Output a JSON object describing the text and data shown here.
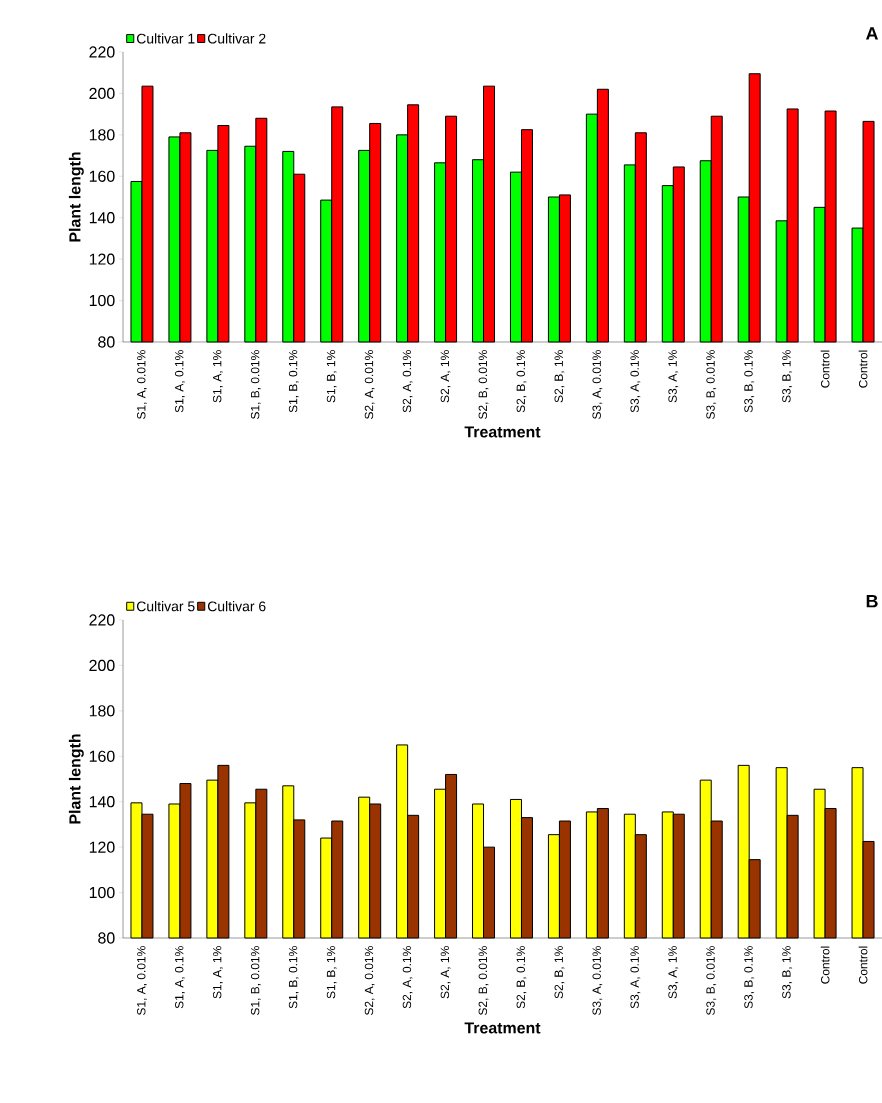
{
  "chart_data": [
    {
      "type": "bar",
      "title": "A",
      "xlabel": "Treatment",
      "ylabel": "Plant length",
      "categories": [
        "S1, A, 0.01%",
        "S1, A, 0.1%",
        "S1, A, 1%",
        "S1, B, 0.01%",
        "S1, B, 0.1%",
        "S1, B, 1%",
        "S2, A, 0.01%",
        "S2, A, 0.1%",
        "S2, A, 1%",
        "S2, B, 0.01%",
        "S2, B, 0.1%",
        "S2, B, 1%",
        "S3, A, 0.01%",
        "S3, A, 0.1%",
        "S3, A, 1%",
        "S3, B, 0.01%",
        "S3, B, 0.1%",
        "S3, B, 1%",
        "Control",
        "Control"
      ],
      "series": [
        {
          "name": "Cultivar 1",
          "color": "#00ff00",
          "values": [
            157.5,
            179,
            172.5,
            174.5,
            172,
            148.5,
            172.5,
            180,
            166.5,
            168,
            162,
            150,
            190,
            165.5,
            155.5,
            167.5,
            150,
            138.5,
            145,
            135
          ]
        },
        {
          "name": "Cultivar 2",
          "color": "#ff0000",
          "values": [
            203.5,
            181,
            184.5,
            188,
            161,
            193.5,
            185.5,
            194.5,
            189,
            203.5,
            182.5,
            151,
            202,
            181,
            164.5,
            189,
            209.5,
            192.5,
            191.5,
            186.5
          ]
        }
      ],
      "ylim": [
        80,
        220
      ],
      "yticks": [
        80,
        100,
        120,
        140,
        160,
        180,
        200,
        220
      ],
      "legend": "top left"
    },
    {
      "type": "bar",
      "title": "B",
      "xlabel": "Treatment",
      "ylabel": "Plant length",
      "categories": [
        "S1, A, 0.01%",
        "S1, A, 0.1%",
        "S1, A, 1%",
        "S1, B, 0.01%",
        "S1, B, 0.1%",
        "S1, B, 1%",
        "S2, A, 0.01%",
        "S2, A, 0.1%",
        "S2, A, 1%",
        "S2, B, 0.01%",
        "S2, B, 0.1%",
        "S2, B, 1%",
        "S3, A, 0.01%",
        "S3, A, 0.1%",
        "S3, A, 1%",
        "S3, B, 0.01%",
        "S3, B, 0.1%",
        "S3, B, 1%",
        "Control",
        "Control"
      ],
      "series": [
        {
          "name": "Cultivar 5",
          "color": "#ffff00",
          "values": [
            139.5,
            139,
            149.5,
            139.5,
            147,
            124,
            142,
            165,
            145.5,
            139,
            141,
            125.5,
            135.5,
            134.5,
            135.5,
            149.5,
            156,
            155,
            145.5,
            155
          ]
        },
        {
          "name": "Cultivar 6",
          "color": "#993300",
          "values": [
            134.5,
            148,
            156,
            145.5,
            132,
            131.5,
            139,
            134,
            152,
            120,
            133,
            131.5,
            137,
            125.5,
            134.5,
            131.5,
            114.5,
            134,
            137,
            122.5
          ]
        }
      ],
      "ylim": [
        80,
        220
      ],
      "yticks": [
        80,
        100,
        120,
        140,
        160,
        180,
        200,
        220
      ],
      "legend": "top left"
    }
  ]
}
